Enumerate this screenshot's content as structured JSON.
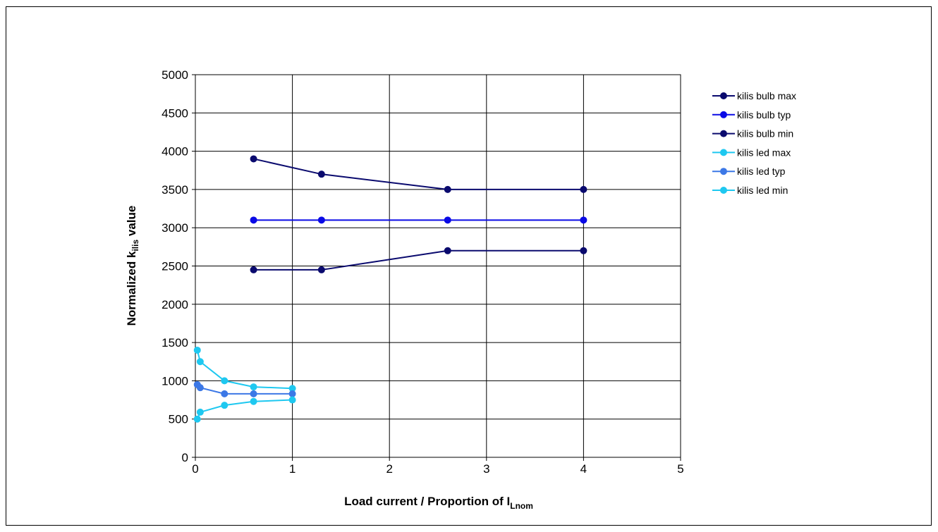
{
  "chart_data": {
    "type": "line",
    "xlabel": "Load current / Proportion of ",
    "xlabel_main": "I",
    "xlabel_sub": "Lnom",
    "ylabel_prefix": "Normalized k",
    "ylabel_sub": "ilis",
    "ylabel_suffix": " value",
    "xlim": [
      0,
      5
    ],
    "ylim": [
      0,
      5000
    ],
    "x_ticks": [
      "0",
      "1",
      "2",
      "3",
      "4",
      "5"
    ],
    "y_ticks": [
      "0",
      "500",
      "1000",
      "1500",
      "2000",
      "2500",
      "3000",
      "3500",
      "4000",
      "4500",
      "5000"
    ],
    "grid": true,
    "legend_position": "right",
    "series": [
      {
        "name": "kilis bulb max",
        "color": "#0a0a6e",
        "x": [
          0.6,
          1.3,
          2.6,
          4.0
        ],
        "y": [
          3900,
          3700,
          3500,
          3500
        ]
      },
      {
        "name": "kilis bulb typ",
        "color": "#0a0ae6",
        "x": [
          0.6,
          1.3,
          2.6,
          4.0
        ],
        "y": [
          3100,
          3100,
          3100,
          3100
        ]
      },
      {
        "name": "kilis bulb min",
        "color": "#0a0a6e",
        "x": [
          0.6,
          1.3,
          2.6,
          4.0
        ],
        "y": [
          2450,
          2450,
          2700,
          2700
        ]
      },
      {
        "name": "kilis led max",
        "color": "#1ec8f0",
        "x": [
          0.02,
          0.05,
          0.3,
          0.6,
          1.0
        ],
        "y": [
          1400,
          1250,
          1000,
          920,
          900
        ]
      },
      {
        "name": "kilis led typ",
        "color": "#3c78e6",
        "x": [
          0.02,
          0.05,
          0.3,
          0.6,
          1.0
        ],
        "y": [
          950,
          910,
          830,
          830,
          830
        ]
      },
      {
        "name": "kilis led min",
        "color": "#1ec8f0",
        "x": [
          0.02,
          0.05,
          0.3,
          0.6,
          1.0
        ],
        "y": [
          500,
          590,
          680,
          730,
          750
        ]
      }
    ]
  }
}
